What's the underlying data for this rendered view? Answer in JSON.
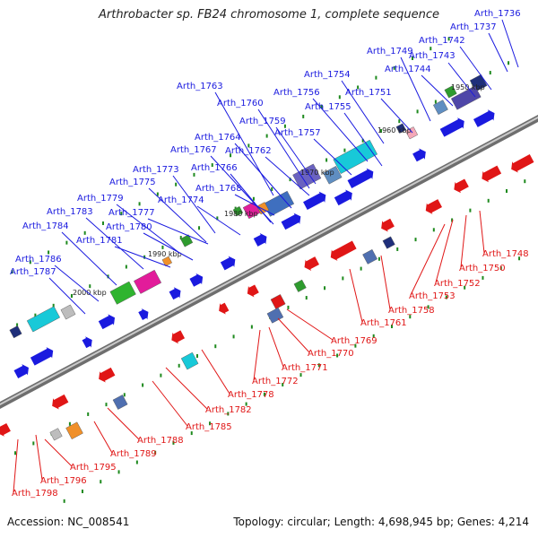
{
  "title": "Arthrobacter sp. FB24 chromosome 1, complete sequence",
  "footer": {
    "accession": "Accession: NC_008541",
    "summary": "Topology: circular; Length: 4,698,945 bp; Genes: 4,214"
  },
  "colors": {
    "backbone": "#8c8c8c",
    "forward_label": "#1a1adf",
    "reverse_label": "#e01616",
    "forward_arrow": "#1a1adf",
    "reverse_arrow": "#e01616",
    "dots": "#1e8a1e"
  },
  "scale_ticks": [
    {
      "label": "1950 kbp"
    },
    {
      "label": "1960 kbp"
    },
    {
      "label": "1970 kbp"
    },
    {
      "label": "1980 kbp"
    },
    {
      "label": "1990 kbp"
    },
    {
      "label": "2000 kbp"
    }
  ],
  "forward_labels": [
    "Arth_1736",
    "Arth_1737",
    "Arth_1742",
    "Arth_1743",
    "Arth_1744",
    "Arth_1749",
    "Arth_1754",
    "Arth_1751",
    "Arth_1756",
    "Arth_1755",
    "Arth_1763",
    "Arth_1760",
    "Arth_1759",
    "Arth_1757",
    "Arth_1764",
    "Arth_1767",
    "Arth_1762",
    "Arth_1766",
    "Arth_1773",
    "Arth_1775",
    "Arth_1768",
    "Arth_1774",
    "Arth_1779",
    "Arth_1777",
    "Arth_1783",
    "Arth_1780",
    "Arth_1784",
    "Arth_1781",
    "Arth_1786",
    "Arth_1787"
  ],
  "reverse_labels": [
    "Arth_1748",
    "Arth_1750",
    "Arth_1752",
    "Arth_1753",
    "Arth_1758",
    "Arth_1761",
    "Arth_1769",
    "Arth_1770",
    "Arth_1771",
    "Arth_1772",
    "Arth_1778",
    "Arth_1782",
    "Arth_1785",
    "Arth_1788",
    "Arth_1789",
    "Arth_1795",
    "Arth_1796",
    "Arth_1798"
  ]
}
